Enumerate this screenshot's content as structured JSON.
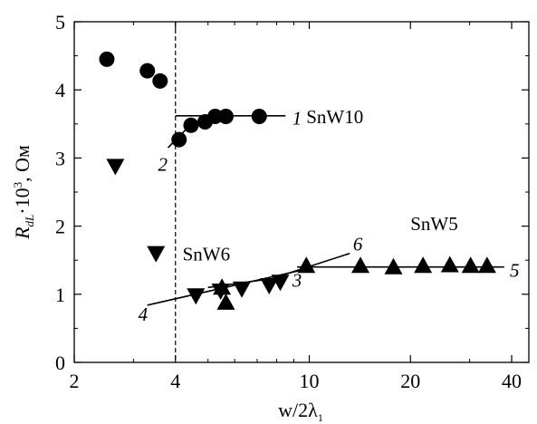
{
  "chart_data": {
    "type": "scatter",
    "x_scale": "log",
    "xlim": [
      2,
      45
    ],
    "ylim": [
      0,
      5
    ],
    "xlabel": "w/2λ",
    "xlabel_subscript": "1",
    "ylabel_base": "R",
    "ylabel_subscript": "dL",
    "ylabel_mult": "·10",
    "ylabel_power": "3",
    "ylabel_unit": ", Ом",
    "x_ticks": [
      2,
      4,
      10,
      20,
      40
    ],
    "x_tick_labels": [
      "2",
      "4",
      "10",
      "20",
      "40"
    ],
    "y_ticks": [
      0,
      1,
      2,
      3,
      4,
      5
    ],
    "y_tick_labels": [
      "0",
      "1",
      "2",
      "3",
      "4",
      "5"
    ],
    "vertical_marker_x": 4,
    "series": [
      {
        "name": "SnW10",
        "marker": "circle",
        "points": [
          [
            2.5,
            4.45
          ],
          [
            3.3,
            4.28
          ],
          [
            3.6,
            4.13
          ],
          [
            4.1,
            3.27
          ],
          [
            4.45,
            3.48
          ],
          [
            4.9,
            3.53
          ],
          [
            5.25,
            3.61
          ],
          [
            5.65,
            3.61
          ],
          [
            7.1,
            3.61
          ]
        ]
      },
      {
        "name": "SnW6",
        "marker": "triangle-down",
        "points": [
          [
            2.65,
            2.88
          ],
          [
            3.5,
            1.6
          ],
          [
            4.6,
            0.98
          ],
          [
            5.45,
            1.05
          ],
          [
            6.3,
            1.08
          ],
          [
            7.6,
            1.13
          ],
          [
            8.2,
            1.18
          ]
        ]
      },
      {
        "name": "SnW5",
        "marker": "triangle-up",
        "points": [
          [
            5.65,
            0.88
          ],
          [
            5.5,
            1.1
          ],
          [
            9.8,
            1.42
          ],
          [
            14.2,
            1.42
          ],
          [
            17.8,
            1.4
          ],
          [
            21.8,
            1.42
          ],
          [
            26.2,
            1.43
          ],
          [
            30.2,
            1.42
          ],
          [
            33.8,
            1.42
          ]
        ]
      }
    ],
    "fit_lines": [
      {
        "label": "1",
        "from": [
          4.0,
          3.62
        ],
        "to": [
          8.5,
          3.62
        ]
      },
      {
        "label": "2",
        "from": [
          3.8,
          3.15
        ],
        "to": [
          4.3,
          3.42
        ]
      },
      {
        "label": "3",
        "from": [
          5.0,
          1.1
        ],
        "to": [
          8.6,
          1.26
        ]
      },
      {
        "label": "4",
        "from": [
          3.3,
          0.84
        ],
        "to": [
          10.0,
          1.38
        ]
      },
      {
        "label": "5",
        "from": [
          9.2,
          1.4
        ],
        "to": [
          38.0,
          1.4
        ]
      },
      {
        "label": "6",
        "from": [
          8.2,
          1.27
        ],
        "to": [
          13.2,
          1.6
        ]
      }
    ],
    "annotations": [
      {
        "text": "SnW10",
        "at": [
          9.8,
          3.62
        ],
        "style": "plain"
      },
      {
        "text": "SnW6",
        "at": [
          4.2,
          1.6
        ],
        "style": "plain"
      },
      {
        "text": "SnW5",
        "at": [
          20.0,
          2.05
        ],
        "style": "plain"
      },
      {
        "text": "1",
        "at": [
          8.9,
          3.6
        ],
        "style": "italic"
      },
      {
        "text": "2",
        "at": [
          3.55,
          2.92
        ],
        "style": "italic"
      },
      {
        "text": "3",
        "at": [
          8.9,
          1.22
        ],
        "style": "italic"
      },
      {
        "text": "4",
        "at": [
          3.1,
          0.72
        ],
        "style": "italic"
      },
      {
        "text": "5",
        "at": [
          39.5,
          1.36
        ],
        "style": "italic"
      },
      {
        "text": "6",
        "at": [
          13.5,
          1.75
        ],
        "style": "italic"
      }
    ]
  }
}
